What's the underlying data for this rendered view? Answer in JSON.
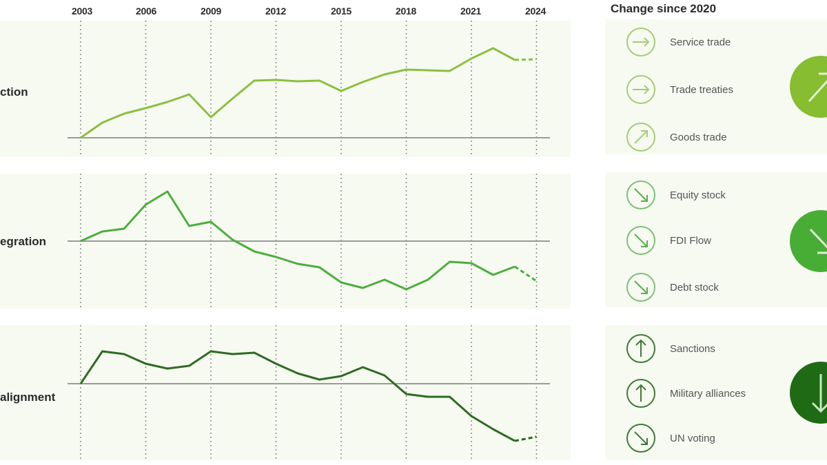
{
  "chart_data": {
    "type": "line",
    "title": "",
    "x": [
      2003,
      2004,
      2005,
      2006,
      2007,
      2008,
      2009,
      2010,
      2011,
      2012,
      2013,
      2014,
      2015,
      2016,
      2017,
      2018,
      2019,
      2020,
      2021,
      2022,
      2023,
      2024
    ],
    "xticks": [
      "2003",
      "2006",
      "2009",
      "2012",
      "2015",
      "2018",
      "2021",
      "2024"
    ],
    "grid": "vertical dotted at tick years",
    "baseline": "horizontal zero line per panel",
    "projection_note": "2023-2024 segment drawn dashed",
    "series": [
      {
        "name": "…ction",
        "color": "#8cbf3f",
        "values": [
          0,
          22,
          35,
          43,
          52,
          63,
          30,
          57,
          83,
          84,
          82,
          83,
          68,
          81,
          92,
          99,
          98,
          97,
          115,
          130,
          113,
          114
        ]
      },
      {
        "name": "…egration",
        "color": "#4cae3d",
        "values": [
          0,
          14,
          18,
          53,
          72,
          22,
          28,
          2,
          -15,
          -23,
          -33,
          -38,
          -60,
          -68,
          -56,
          -70,
          -56,
          -30,
          -32,
          -49,
          -37,
          -58
        ]
      },
      {
        "name": "…alignment",
        "color": "#2e6b22",
        "values": [
          0,
          47,
          43,
          29,
          22,
          26,
          47,
          43,
          45,
          29,
          15,
          6,
          11,
          24,
          12,
          -15,
          -19,
          -19,
          -47,
          -66,
          -83,
          -77
        ]
      }
    ],
    "ylim_note": "no y-axis ticks shown; values are relative index units"
  },
  "header": {
    "years": [
      "2003",
      "2006",
      "2009",
      "2012",
      "2015",
      "2018",
      "2021",
      "2024"
    ],
    "side_title": "Change since 2020"
  },
  "rows": [
    {
      "label": "ction",
      "color": "#8cbf3f",
      "overall": "up-right",
      "indicators": [
        {
          "label": "Service trade",
          "direction": "right",
          "icon": "arrow-right-icon"
        },
        {
          "label": "Trade treaties",
          "direction": "right",
          "icon": "arrow-right-icon"
        },
        {
          "label": "Goods trade",
          "direction": "up-right",
          "icon": "arrow-up-right-icon"
        }
      ]
    },
    {
      "label": "egration",
      "color": "#4cae3d",
      "overall": "down-right",
      "indicators": [
        {
          "label": "Equity stock",
          "direction": "down-right",
          "icon": "arrow-down-right-icon"
        },
        {
          "label": "FDI Flow",
          "direction": "down-right",
          "icon": "arrow-down-right-icon"
        },
        {
          "label": "Debt stock",
          "direction": "down-right",
          "icon": "arrow-down-right-icon"
        }
      ]
    },
    {
      "label": "alignment",
      "color": "#1f6b15",
      "overall": "down",
      "indicators": [
        {
          "label": "Sanctions",
          "direction": "up",
          "icon": "arrow-up-icon"
        },
        {
          "label": "Military alliances",
          "direction": "up",
          "icon": "arrow-up-icon"
        },
        {
          "label": "UN voting",
          "direction": "down-right",
          "icon": "arrow-down-right-icon"
        }
      ]
    }
  ],
  "colors": {
    "panel_bg": "#f6faf1",
    "row1": "#8cbf3f",
    "row2": "#4cae3d",
    "row3": "#2e6b22",
    "big_row1": "#86bd31",
    "big_row2": "#48ad35",
    "big_row3": "#1f6b15"
  }
}
